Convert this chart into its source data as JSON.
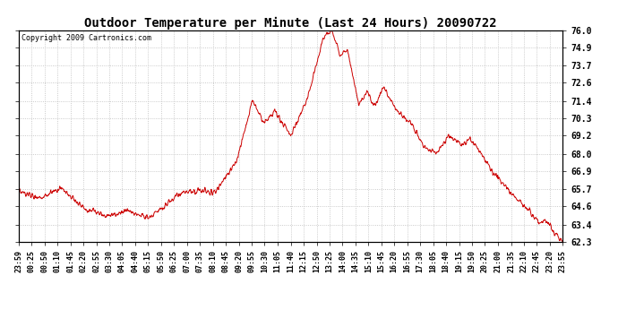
{
  "title": "Outdoor Temperature per Minute (Last 24 Hours) 20090722",
  "copyright_text": "Copyright 2009 Cartronics.com",
  "line_color": "#cc0000",
  "background_color": "#ffffff",
  "grid_color": "#bbbbbb",
  "yticks": [
    62.3,
    63.4,
    64.6,
    65.7,
    66.9,
    68.0,
    69.2,
    70.3,
    71.4,
    72.6,
    73.7,
    74.9,
    76.0
  ],
  "ymin": 62.3,
  "ymax": 76.0,
  "xtick_labels": [
    "23:59",
    "00:25",
    "00:50",
    "01:10",
    "01:45",
    "02:20",
    "02:55",
    "03:30",
    "04:05",
    "04:40",
    "05:15",
    "05:50",
    "06:25",
    "07:00",
    "07:35",
    "08:10",
    "08:45",
    "09:20",
    "09:55",
    "10:30",
    "11:05",
    "11:40",
    "12:15",
    "12:50",
    "13:25",
    "14:00",
    "14:35",
    "15:10",
    "15:45",
    "16:20",
    "16:55",
    "17:30",
    "18:05",
    "18:40",
    "19:15",
    "19:50",
    "20:25",
    "21:00",
    "21:35",
    "22:10",
    "22:45",
    "23:20",
    "23:55"
  ],
  "title_fontsize": 10,
  "tick_fontsize": 6,
  "copyright_fontsize": 6
}
